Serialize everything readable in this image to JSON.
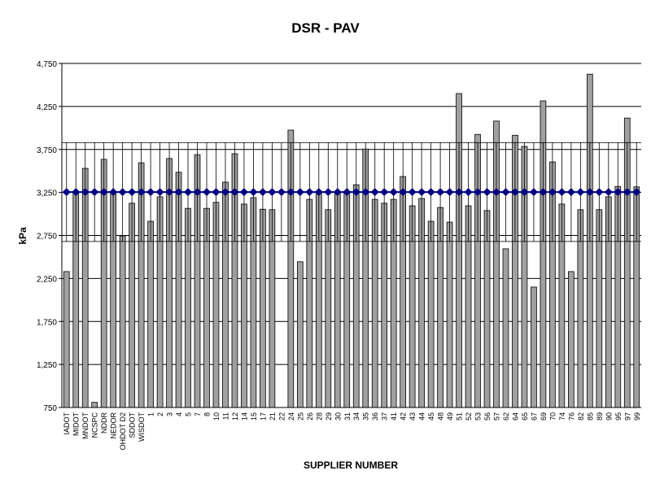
{
  "chart_data": {
    "type": "bar",
    "title": "DSR - PAV",
    "x_label": "SUPPLIER NUMBER",
    "y_label": "kPa",
    "categories": [
      "IADOT",
      "MIDOT",
      "MNDOT",
      "NCSPC",
      "NDDR",
      "NEDOR",
      "OHDOT D2",
      "SDDOT",
      "WISDOT",
      "1",
      "2",
      "3",
      "4",
      "5",
      "7",
      "8",
      "10",
      "11",
      "12",
      "14",
      "15",
      "17",
      "21",
      "22",
      "24",
      "25",
      "26",
      "28",
      "29",
      "30",
      "31",
      "34",
      "35",
      "36",
      "37",
      "41",
      "42",
      "43",
      "44",
      "45",
      "48",
      "49",
      "51",
      "52",
      "53",
      "56",
      "57",
      "62",
      "64",
      "65",
      "67",
      "69",
      "70",
      "74",
      "76",
      "82",
      "85",
      "89",
      "90",
      "95",
      "97",
      "99"
    ],
    "series": [
      {
        "type": "bar",
        "color": "#a0a0a0",
        "values": [
          2330,
          3250,
          3530,
          810,
          3635,
          3250,
          2745,
          3125,
          3595,
          2915,
          3200,
          3645,
          3485,
          3065,
          3690,
          3065,
          3135,
          3370,
          3700,
          3115,
          3190,
          3055,
          3050,
          null,
          3975,
          2445,
          3170,
          3250,
          3050,
          3250,
          3250,
          3340,
          3755,
          3170,
          3125,
          3170,
          3435,
          3095,
          3180,
          2915,
          3075,
          2905,
          4400,
          3095,
          3925,
          3040,
          4080,
          2595,
          3915,
          3785,
          2150,
          4315,
          3605,
          3115,
          2330,
          3050,
          4625,
          3050,
          3200,
          3320,
          4115,
          3315
        ]
      },
      {
        "type": "line",
        "color": "#000080",
        "values": [
          3255,
          3255,
          3255,
          3255,
          3255,
          3255,
          3255,
          3255,
          3255,
          3255,
          3255,
          3255,
          3255,
          3255,
          3255,
          3255,
          3255,
          3255,
          3255,
          3255,
          3255,
          3255,
          3255,
          3255,
          3255,
          3255,
          3255,
          3255,
          3255,
          3255,
          3255,
          3255,
          3255,
          3255,
          3255,
          3255,
          3255,
          3255,
          3255,
          3255,
          3255,
          3255,
          3255,
          3255,
          3255,
          3255,
          3255,
          3255,
          3255,
          3255,
          3255,
          3255,
          3255,
          3255,
          3255,
          3255,
          3255,
          3255,
          3255,
          3255,
          3255,
          3255
        ],
        "errors": [
          575,
          575,
          575,
          575,
          575,
          575,
          575,
          575,
          575,
          575,
          575,
          575,
          575,
          575,
          575,
          575,
          575,
          575,
          575,
          575,
          575,
          575,
          575,
          575,
          575,
          575,
          575,
          575,
          575,
          575,
          575,
          575,
          575,
          575,
          575,
          575,
          575,
          575,
          575,
          575,
          575,
          575,
          575,
          575,
          575,
          575,
          575,
          575,
          575,
          575,
          575,
          575,
          575,
          575,
          575,
          575,
          575,
          575,
          575,
          575,
          575,
          575
        ]
      }
    ],
    "ylim": [
      750,
      4750
    ],
    "yticks": [
      {
        "value": 750,
        "label": "750"
      },
      {
        "value": 1250,
        "label": "1,250"
      },
      {
        "value": 1750,
        "label": "1,750"
      },
      {
        "value": 2250,
        "label": "2,250"
      },
      {
        "value": 2750,
        "label": "2,750"
      },
      {
        "value": 3250,
        "label": "3,250"
      },
      {
        "value": 3750,
        "label": "3,750"
      },
      {
        "value": 4250,
        "label": "4,250"
      },
      {
        "value": 4750,
        "label": "4,750"
      }
    ],
    "grid": true
  }
}
